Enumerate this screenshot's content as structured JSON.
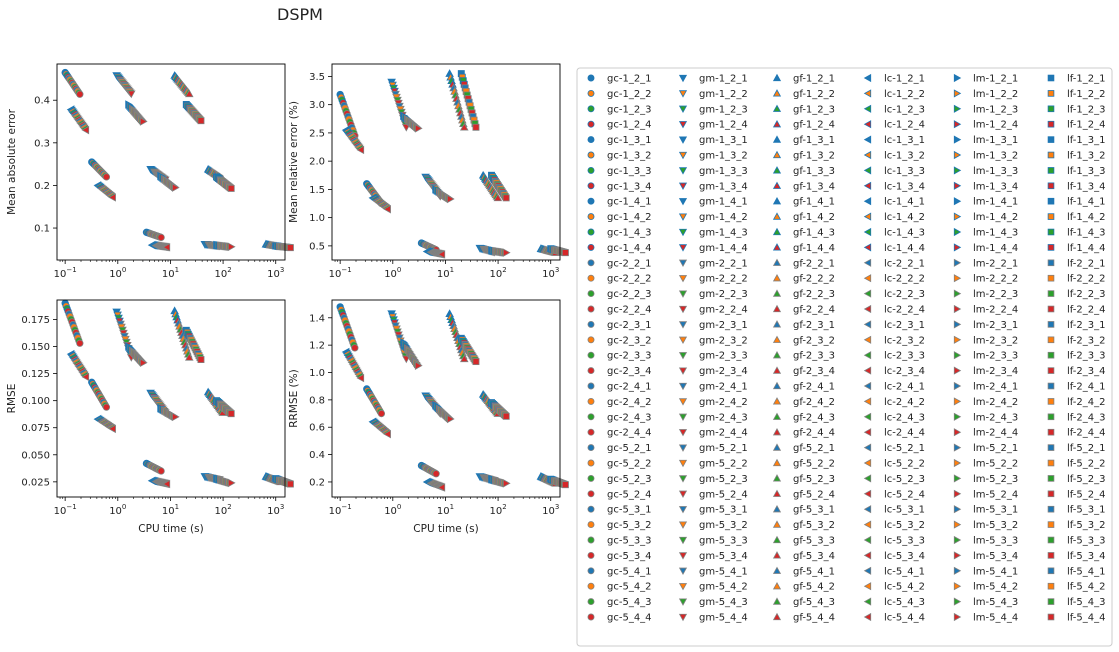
{
  "figure": {
    "title": "DSPM"
  },
  "chart_data": [
    {
      "type": "scatter",
      "panel": "top-left",
      "title": "",
      "xlabel": "",
      "ylabel": "Mean absolute error",
      "xscale": "log",
      "xlim": [
        0.07,
        1500
      ],
      "ylim": [
        0.025,
        0.485
      ],
      "yticks": [
        0.1,
        0.2,
        0.3,
        0.4
      ],
      "ytick_labels": [
        "0.1",
        "0.2",
        "0.3",
        "0.4"
      ],
      "grid": false,
      "clusters": [
        {
          "family": "gc",
          "cpu_s": [
            0.1,
            0.32,
            3.5
          ],
          "values": [
            [
              0.465,
              0.414
            ],
            [
              0.255,
              0.22
            ],
            [
              0.09,
              0.078
            ]
          ]
        },
        {
          "family": "gm",
          "cpu_s": [
            0.95,
            4.2,
            45.0
          ],
          "values": [
            [
              0.458,
              0.415
            ],
            [
              0.238,
              0.213
            ],
            [
              0.062,
              0.058
            ]
          ]
        },
        {
          "family": "gf",
          "cpu_s": [
            12.0,
            52.0,
            650.0
          ],
          "values": [
            [
              0.458,
              0.415
            ],
            [
              0.238,
              0.215
            ],
            [
              0.062,
              0.056
            ]
          ]
        },
        {
          "family": "lc",
          "cpu_s": [
            0.13,
            0.42,
            4.5
          ],
          "values": [
            [
              0.378,
              0.33
            ],
            [
              0.2,
              0.172
            ],
            [
              0.06,
              0.055
            ]
          ]
        },
        {
          "family": "lm",
          "cpu_s": [
            1.6,
            6.5,
            75.0
          ],
          "values": [
            [
              0.39,
              0.35
            ],
            [
              0.222,
              0.195
            ],
            [
              0.06,
              0.056
            ]
          ]
        },
        {
          "family": "lf",
          "cpu_s": [
            20.0,
            75.0,
            1000.0
          ],
          "values": [
            [
              0.39,
              0.352
            ],
            [
              0.22,
              0.193
            ],
            [
              0.058,
              0.054
            ]
          ]
        }
      ]
    },
    {
      "type": "scatter",
      "panel": "top-right",
      "title": "",
      "xlabel": "",
      "ylabel": "Mean relative error (%)",
      "xscale": "log",
      "xlim": [
        0.07,
        1500
      ],
      "ylim": [
        0.25,
        3.72
      ],
      "yticks": [
        0.5,
        1.0,
        1.5,
        2.0,
        2.5,
        3.0,
        3.5
      ],
      "ytick_labels": [
        "0.5",
        "1.0",
        "1.5",
        "2.0",
        "2.5",
        "3.0",
        "3.5"
      ],
      "grid": false,
      "clusters": [
        {
          "family": "gc",
          "cpu_s": [
            0.1,
            0.32,
            3.5
          ],
          "values": [
            [
              3.18,
              2.45
            ],
            [
              1.6,
              1.25
            ],
            [
              0.55,
              0.43
            ]
          ]
        },
        {
          "family": "gm",
          "cpu_s": [
            0.95,
            4.2,
            45.0
          ],
          "values": [
            [
              3.4,
              2.6
            ],
            [
              1.72,
              1.38
            ],
            [
              0.46,
              0.39
            ]
          ]
        },
        {
          "family": "gf",
          "cpu_s": [
            12.0,
            52.0,
            650.0
          ],
          "values": [
            [
              3.55,
              2.6
            ],
            [
              1.75,
              1.35
            ],
            [
              0.45,
              0.38
            ]
          ]
        },
        {
          "family": "lc",
          "cpu_s": [
            0.13,
            0.42,
            4.5
          ],
          "values": [
            [
              2.55,
              2.2
            ],
            [
              1.35,
              1.15
            ],
            [
              0.4,
              0.35
            ]
          ]
        },
        {
          "family": "lm",
          "cpu_s": [
            1.6,
            6.5,
            75.0
          ],
          "values": [
            [
              2.8,
              2.58
            ],
            [
              1.5,
              1.33
            ],
            [
              0.42,
              0.38
            ]
          ]
        },
        {
          "family": "lf",
          "cpu_s": [
            20.0,
            75.0,
            1000.0
          ],
          "values": [
            [
              3.55,
              2.6
            ],
            [
              1.75,
              1.35
            ],
            [
              0.45,
              0.38
            ]
          ]
        }
      ]
    },
    {
      "type": "scatter",
      "panel": "bottom-left",
      "title": "",
      "xlabel": "CPU time (s)",
      "ylabel": "RMSE",
      "xscale": "log",
      "xlim": [
        0.07,
        1500
      ],
      "ylim": [
        0.011,
        0.193
      ],
      "yticks": [
        0.025,
        0.05,
        0.075,
        0.1,
        0.125,
        0.15,
        0.175
      ],
      "ytick_labels": [
        "0.025",
        "0.050",
        "0.075",
        "0.100",
        "0.125",
        "0.150",
        "0.175"
      ],
      "grid": false,
      "clusters": [
        {
          "family": "gc",
          "cpu_s": [
            0.1,
            0.32,
            3.5
          ],
          "values": [
            [
              0.19,
              0.153
            ],
            [
              0.117,
              0.094
            ],
            [
              0.042,
              0.035
            ]
          ]
        },
        {
          "family": "gm",
          "cpu_s": [
            0.95,
            4.2,
            45.0
          ],
          "values": [
            [
              0.182,
              0.14
            ],
            [
              0.107,
              0.089
            ],
            [
              0.03,
              0.027
            ]
          ]
        },
        {
          "family": "gf",
          "cpu_s": [
            12.0,
            52.0,
            650.0
          ],
          "values": [
            [
              0.183,
              0.14
            ],
            [
              0.108,
              0.089
            ],
            [
              0.03,
              0.025
            ]
          ]
        },
        {
          "family": "lc",
          "cpu_s": [
            0.13,
            0.42,
            4.5
          ],
          "values": [
            [
              0.143,
              0.122
            ],
            [
              0.083,
              0.074
            ],
            [
              0.026,
              0.023
            ]
          ]
        },
        {
          "family": "lm",
          "cpu_s": [
            1.6,
            6.5,
            75.0
          ],
          "values": [
            [
              0.15,
              0.135
            ],
            [
              0.093,
              0.085
            ],
            [
              0.028,
              0.024
            ]
          ]
        },
        {
          "family": "lf",
          "cpu_s": [
            20.0,
            75.0,
            1000.0
          ],
          "values": [
            [
              0.165,
              0.138
            ],
            [
              0.1,
              0.088
            ],
            [
              0.028,
              0.023
            ]
          ]
        }
      ]
    },
    {
      "type": "scatter",
      "panel": "bottom-right",
      "title": "",
      "xlabel": "CPU time (s)",
      "ylabel": "RRMSE (%)",
      "xscale": "log",
      "xlim": [
        0.07,
        1500
      ],
      "ylim": [
        0.09,
        1.53
      ],
      "yticks": [
        0.2,
        0.4,
        0.6,
        0.8,
        1.0,
        1.2,
        1.4
      ],
      "ytick_labels": [
        "0.2",
        "0.4",
        "0.6",
        "0.8",
        "1.0",
        "1.2",
        "1.4"
      ],
      "grid": false,
      "clusters": [
        {
          "family": "gc",
          "cpu_s": [
            0.1,
            0.32,
            3.5
          ],
          "values": [
            [
              1.48,
              1.18
            ],
            [
              0.88,
              0.7
            ],
            [
              0.32,
              0.26
            ]
          ]
        },
        {
          "family": "gm",
          "cpu_s": [
            0.95,
            4.2,
            45.0
          ],
          "values": [
            [
              1.43,
              1.1
            ],
            [
              0.83,
              0.7
            ],
            [
              0.24,
              0.21
            ]
          ]
        },
        {
          "family": "gf",
          "cpu_s": [
            12.0,
            52.0,
            650.0
          ],
          "values": [
            [
              1.43,
              1.1
            ],
            [
              0.84,
              0.7
            ],
            [
              0.24,
              0.19
            ]
          ]
        },
        {
          "family": "lc",
          "cpu_s": [
            0.13,
            0.42,
            4.5
          ],
          "values": [
            [
              1.15,
              0.96
            ],
            [
              0.64,
              0.55
            ],
            [
              0.2,
              0.16
            ]
          ]
        },
        {
          "family": "lm",
          "cpu_s": [
            1.6,
            6.5,
            75.0
          ],
          "values": [
            [
              1.22,
              1.05
            ],
            [
              0.76,
              0.66
            ],
            [
              0.22,
              0.19
            ]
          ]
        },
        {
          "family": "lf",
          "cpu_s": [
            20.0,
            75.0,
            1000.0
          ],
          "values": [
            [
              1.25,
              1.08
            ],
            [
              0.78,
              0.68
            ],
            [
              0.22,
              0.18
            ]
          ]
        }
      ]
    }
  ],
  "x_axis": {
    "ticks": [
      0.1,
      1,
      10,
      100,
      1000
    ],
    "tick_labels": [
      {
        "base": "10",
        "exp": "−1"
      },
      {
        "base": "10",
        "exp": "0"
      },
      {
        "base": "10",
        "exp": "1"
      },
      {
        "base": "10",
        "exp": "2"
      },
      {
        "base": "10",
        "exp": "3"
      }
    ]
  },
  "legend": {
    "placement": "right",
    "families": [
      {
        "prefix": "gc",
        "marker": "circle"
      },
      {
        "prefix": "gm",
        "marker": "triangle-down"
      },
      {
        "prefix": "gf",
        "marker": "triangle-up"
      },
      {
        "prefix": "lc",
        "marker": "triangle-left"
      },
      {
        "prefix": "lm",
        "marker": "triangle-right"
      },
      {
        "prefix": "lf",
        "marker": "square"
      }
    ],
    "entries": [
      [
        "gc-1_2_1",
        "gm-1_2_1",
        "gf-1_2_1",
        "lc-1_2_1",
        "lm-1_2_1",
        "lf-1_2_1"
      ],
      [
        "gc-1_2_2",
        "gm-1_2_2",
        "gf-1_2_2",
        "lc-1_2_2",
        "lm-1_2_2",
        "lf-1_2_2"
      ],
      [
        "gc-1_2_3",
        "gm-1_2_3",
        "gf-1_2_3",
        "lc-1_2_3",
        "lm-1_2_3",
        "lf-1_2_3"
      ],
      [
        "gc-1_2_4",
        "gm-1_2_4",
        "gf-1_2_4",
        "lc-1_2_4",
        "lm-1_2_4",
        "lf-1_2_4"
      ],
      [
        "gc-1_3_1",
        "gm-1_3_1",
        "gf-1_3_1",
        "lc-1_3_1",
        "lm-1_3_1",
        "lf-1_3_1"
      ],
      [
        "gc-1_3_2",
        "gm-1_3_2",
        "gf-1_3_2",
        "lc-1_3_2",
        "lm-1_3_2",
        "lf-1_3_2"
      ],
      [
        "gc-1_3_3",
        "gm-1_3_3",
        "gf-1_3_3",
        "lc-1_3_3",
        "lm-1_3_3",
        "lf-1_3_3"
      ],
      [
        "gc-1_3_4",
        "gm-1_3_4",
        "gf-1_3_4",
        "lc-1_3_4",
        "lm-1_3_4",
        "lf-1_3_4"
      ],
      [
        "gc-1_4_1",
        "gm-1_4_1",
        "gf-1_4_1",
        "lc-1_4_1",
        "lm-1_4_1",
        "lf-1_4_1"
      ],
      [
        "gc-1_4_2",
        "gm-1_4_2",
        "gf-1_4_2",
        "lc-1_4_2",
        "lm-1_4_2",
        "lf-1_4_2"
      ],
      [
        "gc-1_4_3",
        "gm-1_4_3",
        "gf-1_4_3",
        "lc-1_4_3",
        "lm-1_4_3",
        "lf-1_4_3"
      ],
      [
        "gc-1_4_4",
        "gm-1_4_4",
        "gf-1_4_4",
        "lc-1_4_4",
        "lm-1_4_4",
        "lf-1_4_4"
      ],
      [
        "gc-2_2_1",
        "gm-2_2_1",
        "gf-2_2_1",
        "lc-2_2_1",
        "lm-2_2_1",
        "lf-2_2_1"
      ],
      [
        "gc-2_2_2",
        "gm-2_2_2",
        "gf-2_2_2",
        "lc-2_2_2",
        "lm-2_2_2",
        "lf-2_2_2"
      ],
      [
        "gc-2_2_3",
        "gm-2_2_3",
        "gf-2_2_3",
        "lc-2_2_3",
        "lm-2_2_3",
        "lf-2_2_3"
      ],
      [
        "gc-2_2_4",
        "gm-2_2_4",
        "gf-2_2_4",
        "lc-2_2_4",
        "lm-2_2_4",
        "lf-2_2_4"
      ],
      [
        "gc-2_3_1",
        "gm-2_3_1",
        "gf-2_3_1",
        "lc-2_3_1",
        "lm-2_3_1",
        "lf-2_3_1"
      ],
      [
        "gc-2_3_2",
        "gm-2_3_2",
        "gf-2_3_2",
        "lc-2_3_2",
        "lm-2_3_2",
        "lf-2_3_2"
      ],
      [
        "gc-2_3_3",
        "gm-2_3_3",
        "gf-2_3_3",
        "lc-2_3_3",
        "lm-2_3_3",
        "lf-2_3_3"
      ],
      [
        "gc-2_3_4",
        "gm-2_3_4",
        "gf-2_3_4",
        "lc-2_3_4",
        "lm-2_3_4",
        "lf-2_3_4"
      ],
      [
        "gc-2_4_1",
        "gm-2_4_1",
        "gf-2_4_1",
        "lc-2_4_1",
        "lm-2_4_1",
        "lf-2_4_1"
      ],
      [
        "gc-2_4_2",
        "gm-2_4_2",
        "gf-2_4_2",
        "lc-2_4_2",
        "lm-2_4_2",
        "lf-2_4_2"
      ],
      [
        "gc-2_4_3",
        "gm-2_4_3",
        "gf-2_4_3",
        "lc-2_4_3",
        "lm-2_4_3",
        "lf-2_4_3"
      ],
      [
        "gc-2_4_4",
        "gm-2_4_4",
        "gf-2_4_4",
        "lc-2_4_4",
        "lm-2_4_4",
        "lf-2_4_4"
      ],
      [
        "gc-5_2_1",
        "gm-5_2_1",
        "gf-5_2_1",
        "lc-5_2_1",
        "lm-5_2_1",
        "lf-5_2_1"
      ],
      [
        "gc-5_2_2",
        "gm-5_2_2",
        "gf-5_2_2",
        "lc-5_2_2",
        "lm-5_2_2",
        "lf-5_2_2"
      ],
      [
        "gc-5_2_3",
        "gm-5_2_3",
        "gf-5_2_3",
        "lc-5_2_3",
        "lm-5_2_3",
        "lf-5_2_3"
      ],
      [
        "gc-5_2_4",
        "gm-5_2_4",
        "gf-5_2_4",
        "lc-5_2_4",
        "lm-5_2_4",
        "lf-5_2_4"
      ],
      [
        "gc-5_3_1",
        "gm-5_3_1",
        "gf-5_3_1",
        "lc-5_3_1",
        "lm-5_3_1",
        "lf-5_3_1"
      ],
      [
        "gc-5_3_2",
        "gm-5_3_2",
        "gf-5_3_2",
        "lc-5_3_2",
        "lm-5_3_2",
        "lf-5_3_2"
      ],
      [
        "gc-5_3_3",
        "gm-5_3_3",
        "gf-5_3_3",
        "lc-5_3_3",
        "lm-5_3_3",
        "lf-5_3_3"
      ],
      [
        "gc-5_3_4",
        "gm-5_3_4",
        "gf-5_3_4",
        "lc-5_3_4",
        "lm-5_3_4",
        "lf-5_3_4"
      ],
      [
        "gc-5_4_1",
        "gm-5_4_1",
        "gf-5_4_1",
        "lc-5_4_1",
        "lm-5_4_1",
        "lf-5_4_1"
      ],
      [
        "gc-5_4_2",
        "gm-5_4_2",
        "gf-5_4_2",
        "lc-5_4_2",
        "lm-5_4_2",
        "lf-5_4_2"
      ],
      [
        "gc-5_4_3",
        "gm-5_4_3",
        "gf-5_4_3",
        "lc-5_4_3",
        "lm-5_4_3",
        "lf-5_4_3"
      ],
      [
        "gc-5_4_4",
        "gm-5_4_4",
        "gf-5_4_4",
        "lc-5_4_4",
        "lm-5_4_4",
        "lf-5_4_4"
      ]
    ],
    "row_colors": [
      "#1f77b4",
      "#ff7f0e",
      "#2ca02c",
      "#d62728",
      "#1f77b4",
      "#ff7f0e",
      "#2ca02c",
      "#d62728",
      "#1f77b4",
      "#ff7f0e",
      "#2ca02c",
      "#d62728"
    ],
    "edge_colors": [
      "#1f77b4",
      "#808080",
      "#808080",
      "#808080"
    ]
  }
}
